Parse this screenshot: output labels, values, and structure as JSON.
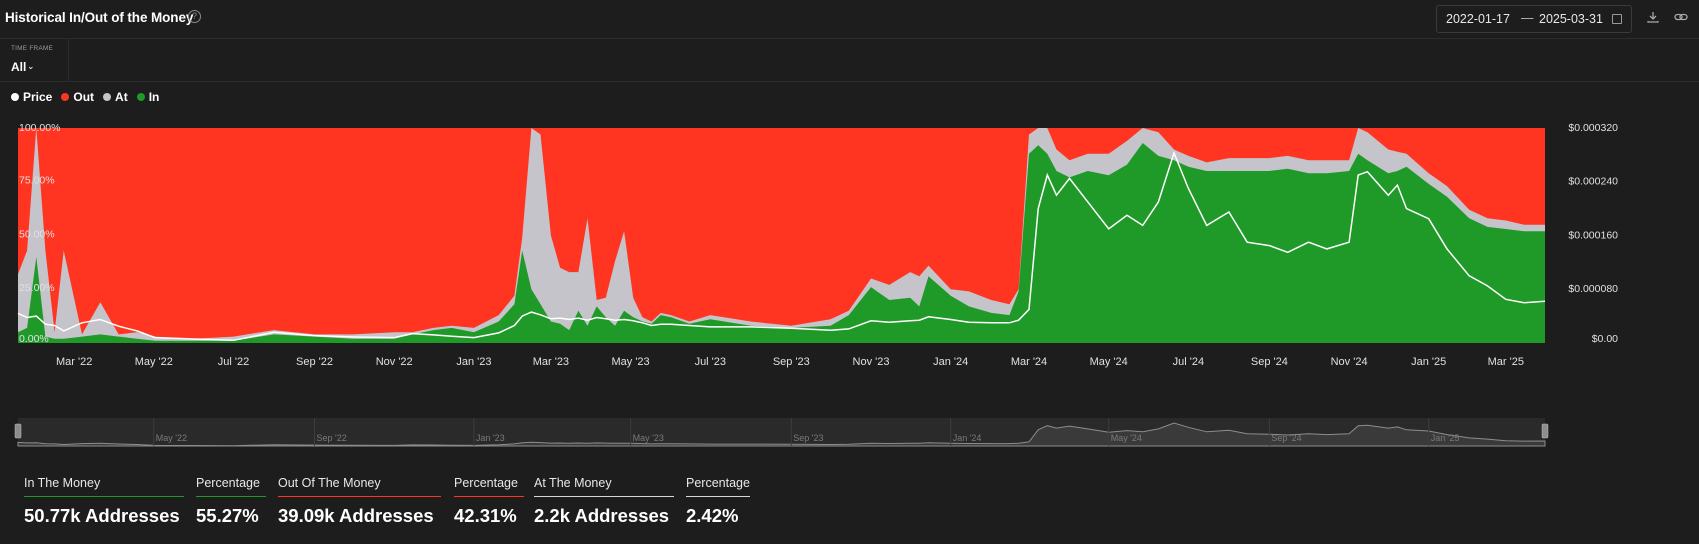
{
  "header": {
    "title": "Historical In/Out of the Money",
    "help_icon": "help-circle-icon",
    "date_start": "2022-01-17",
    "date_sep": "—",
    "date_end": "2025-03-31",
    "calendar_icon": "calendar-icon",
    "download_icon": "download-icon",
    "link_icon": "link-icon"
  },
  "timeframe": {
    "label": "TIME FRAME",
    "value": "All"
  },
  "legend": [
    {
      "label": "Price",
      "color": "#ffffff"
    },
    {
      "label": "Out",
      "color": "#ff3522"
    },
    {
      "label": "At",
      "color": "#c4c4ca"
    },
    {
      "label": "In",
      "color": "#1f9a28"
    }
  ],
  "chart_data": {
    "type": "area",
    "stacking": "percent",
    "x": [
      "2022-01-17",
      "2022-01-24",
      "2022-01-31",
      "2022-02-07",
      "2022-02-14",
      "2022-02-21",
      "2022-03-07",
      "2022-03-21",
      "2022-04-04",
      "2022-04-18",
      "2022-05-02",
      "2022-06-01",
      "2022-07-01",
      "2022-08-01",
      "2022-09-01",
      "2022-10-01",
      "2022-11-01",
      "2022-11-15",
      "2022-12-01",
      "2022-12-15",
      "2023-01-01",
      "2023-01-20",
      "2023-02-01",
      "2023-02-07",
      "2023-02-14",
      "2023-02-21",
      "2023-03-01",
      "2023-03-08",
      "2023-03-15",
      "2023-03-22",
      "2023-03-29",
      "2023-04-05",
      "2023-04-12",
      "2023-04-19",
      "2023-04-26",
      "2023-05-03",
      "2023-05-10",
      "2023-05-17",
      "2023-05-24",
      "2023-06-01",
      "2023-06-15",
      "2023-07-01",
      "2023-08-01",
      "2023-09-01",
      "2023-10-01",
      "2023-10-15",
      "2023-11-01",
      "2023-11-15",
      "2023-12-01",
      "2023-12-08",
      "2023-12-15",
      "2024-01-01",
      "2024-01-15",
      "2024-02-01",
      "2024-02-15",
      "2024-02-22",
      "2024-03-01",
      "2024-03-08",
      "2024-03-15",
      "2024-03-22",
      "2024-04-01",
      "2024-04-15",
      "2024-05-01",
      "2024-05-15",
      "2024-05-27",
      "2024-06-08",
      "2024-06-20",
      "2024-07-01",
      "2024-07-15",
      "2024-08-01",
      "2024-08-15",
      "2024-09-01",
      "2024-09-15",
      "2024-10-01",
      "2024-10-15",
      "2024-11-01",
      "2024-11-08",
      "2024-11-15",
      "2024-12-01",
      "2024-12-08",
      "2024-12-15",
      "2025-01-01",
      "2025-01-15",
      "2025-02-01",
      "2025-02-15",
      "2025-03-01",
      "2025-03-15",
      "2025-03-31"
    ],
    "series": [
      {
        "name": "In",
        "color": "#1f9a28",
        "values": [
          5,
          7,
          40,
          3,
          2,
          2,
          3,
          4,
          3,
          2,
          1,
          1,
          1,
          4,
          3,
          2,
          2,
          4,
          6,
          7,
          5,
          10,
          18,
          43,
          25,
          18,
          10,
          9,
          6,
          15,
          8,
          17,
          12,
          8,
          15,
          12,
          10,
          9,
          13,
          12,
          9,
          11,
          8,
          7,
          8,
          13,
          26,
          20,
          21,
          17,
          31,
          22,
          17,
          14,
          13,
          24,
          88,
          92,
          88,
          80,
          77,
          80,
          78,
          83,
          93,
          87,
          85,
          82,
          80,
          80,
          80,
          80,
          81,
          79,
          79,
          80,
          88,
          85,
          79,
          80,
          82,
          74,
          68,
          58,
          54,
          53,
          52,
          52
        ]
      },
      {
        "name": "At",
        "color": "#c4c4ca",
        "values": [
          27,
          36,
          60,
          40,
          3,
          41,
          1,
          15,
          1,
          3,
          2,
          1,
          2,
          2,
          1,
          2,
          3,
          1,
          1,
          1,
          2,
          3,
          4,
          6,
          75,
          79,
          40,
          26,
          27,
          18,
          50,
          3,
          9,
          30,
          37,
          9,
          2,
          1,
          1,
          1,
          1,
          2,
          2,
          1,
          3,
          2,
          4,
          7,
          12,
          14,
          5,
          3,
          7,
          6,
          5,
          1,
          9,
          8,
          12,
          10,
          8,
          8,
          10,
          11,
          7,
          11,
          5,
          5,
          4,
          6,
          6,
          6,
          6,
          6,
          6,
          5,
          12,
          13,
          11,
          9,
          6,
          5,
          5,
          4,
          4,
          4,
          3,
          3
        ]
      },
      {
        "name": "Out",
        "color": "#ff3522",
        "values": [
          68,
          57,
          0,
          57,
          95,
          57,
          96,
          81,
          96,
          95,
          97,
          98,
          97,
          94,
          96,
          96,
          95,
          95,
          93,
          92,
          93,
          87,
          78,
          51,
          0,
          3,
          50,
          65,
          67,
          67,
          42,
          80,
          79,
          62,
          48,
          79,
          88,
          90,
          86,
          87,
          90,
          87,
          90,
          92,
          89,
          85,
          70,
          73,
          67,
          69,
          64,
          75,
          76,
          80,
          82,
          75,
          3,
          0,
          0,
          10,
          15,
          12,
          12,
          6,
          0,
          2,
          10,
          13,
          16,
          14,
          14,
          14,
          13,
          15,
          15,
          15,
          0,
          2,
          10,
          11,
          12,
          21,
          27,
          38,
          42,
          43,
          45,
          45
        ]
      },
      {
        "name": "Price",
        "color": "#ffffff",
        "values": [
          4.4e-05,
          3.8e-05,
          4e-05,
          2.8e-05,
          2.6e-05,
          1.8e-05,
          3e-05,
          3.5e-05,
          2.5e-05,
          1.8e-05,
          8e-06,
          6e-06,
          4e-06,
          1.6e-05,
          1.1e-05,
          9e-06,
          8e-06,
          1.4e-05,
          1.2e-05,
          1e-05,
          8e-06,
          1.5e-05,
          2.6e-05,
          4e-05,
          4.6e-05,
          4.2e-05,
          3.6e-05,
          3.7e-05,
          3.5e-05,
          3.7e-05,
          3.4e-05,
          3.8e-05,
          3.6e-05,
          3.4e-05,
          3.5e-05,
          3.3e-05,
          3e-05,
          2.6e-05,
          2.8e-05,
          2.8e-05,
          2.6e-05,
          2.4e-05,
          2.4e-05,
          2.2e-05,
          1.9e-05,
          2.1e-05,
          3.3e-05,
          3.1e-05,
          3.3e-05,
          3.4e-05,
          3.9e-05,
          3.5e-05,
          3.1e-05,
          3e-05,
          3e-05,
          3.4e-05,
          5e-05,
          0.0002,
          0.00025,
          0.00022,
          0.000245,
          0.00021,
          0.00017,
          0.00019,
          0.000175,
          0.00021,
          0.000283,
          0.00023,
          0.000175,
          0.000195,
          0.00015,
          0.000145,
          0.000135,
          0.00015,
          0.00014,
          0.00015,
          0.00025,
          0.000255,
          0.00022,
          0.000235,
          0.0002,
          0.000185,
          0.00014,
          0.0001,
          8.5e-05,
          6.5e-05,
          6e-05,
          6.2e-05
        ]
      }
    ],
    "y_left": {
      "ticks": [
        "100.00%",
        "75.00%",
        "50.00%",
        "25.00%",
        "0.00%"
      ],
      "range": [
        0,
        100
      ]
    },
    "y_right": {
      "ticks": [
        "$0.000320",
        "$0.000240",
        "$0.000160",
        "$0.000080",
        "$0.00"
      ],
      "range": [
        0,
        0.00032
      ]
    },
    "x_ticks": [
      "Mar '22",
      "May '22",
      "Jul '22",
      "Sep '22",
      "Nov '22",
      "Jan '23",
      "Mar '23",
      "May '23",
      "Jul '23",
      "Sep '23",
      "Nov '23",
      "Jan '24",
      "Mar '24",
      "May '24",
      "Jul '24",
      "Sep '24",
      "Nov '24",
      "Jan '25",
      "Mar '25"
    ],
    "x_tick_dates": [
      "2022-03-01",
      "2022-05-01",
      "2022-07-01",
      "2022-09-01",
      "2022-11-01",
      "2023-01-01",
      "2023-03-01",
      "2023-05-01",
      "2023-07-01",
      "2023-09-01",
      "2023-11-01",
      "2024-01-01",
      "2024-03-01",
      "2024-05-01",
      "2024-07-01",
      "2024-09-01",
      "2024-11-01",
      "2025-01-01",
      "2025-03-01"
    ],
    "navigator_ticks": [
      "May '22",
      "Sep '22",
      "Jan '23",
      "May '23",
      "Sep '23",
      "Jan '24",
      "May '24",
      "Sep '24",
      "Jan '25"
    ],
    "navigator_tick_dates": [
      "2022-05-01",
      "2022-09-01",
      "2023-01-01",
      "2023-05-01",
      "2023-09-01",
      "2024-01-01",
      "2024-05-01",
      "2024-09-01",
      "2025-01-01"
    ]
  },
  "stats": [
    {
      "label": "In The Money",
      "value": "50.77k Addresses",
      "color": "#1f9a28"
    },
    {
      "label": "Percentage",
      "value": "55.27%",
      "color": "#1f9a28"
    },
    {
      "label": "Out Of The Money",
      "value": "39.09k Addresses",
      "color": "#ff3522"
    },
    {
      "label": "Percentage",
      "value": "42.31%",
      "color": "#ff3522"
    },
    {
      "label": "At The Money",
      "value": "2.2k Addresses",
      "color": "#d8d8d8"
    },
    {
      "label": "Percentage",
      "value": "2.42%",
      "color": "#d8d8d8"
    }
  ]
}
